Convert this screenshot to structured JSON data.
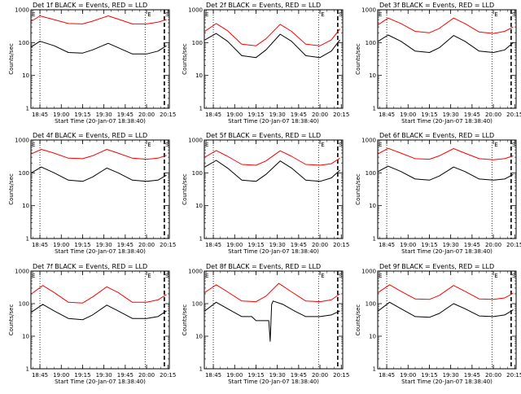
{
  "figure": {
    "background": "#ffffff",
    "series_colors": {
      "events": "#000000",
      "lld": "#ff0000"
    }
  },
  "chart_data": [
    {
      "type": "line",
      "title": "Det 1f BLACK = Events, RED = LLD",
      "xlabel": "Start Time (20-Jan-07 18:38:40)",
      "ylabel": "Counts/sec",
      "yscale": "log",
      "ylim": [
        1,
        1000
      ],
      "xticks": [
        "18:45",
        "19:00",
        "19:15",
        "19:30",
        "19:45",
        "20:00",
        "20:15"
      ],
      "yticks": [
        "1",
        "10",
        "100",
        "1000"
      ],
      "markers": [
        "E",
        "E",
        "S"
      ],
      "series": [
        {
          "name": "BLACK = Events",
          "color": "#000000",
          "x": [
            "18:39",
            "18:45",
            "18:55",
            "19:05",
            "19:15",
            "19:22",
            "19:33",
            "19:40",
            "19:50",
            "20:00",
            "20:08",
            "20:14"
          ],
          "y": [
            75,
            110,
            80,
            50,
            48,
            60,
            95,
            70,
            45,
            45,
            55,
            80
          ]
        },
        {
          "name": "RED = LLD",
          "color": "#ff0000",
          "x": [
            "18:39",
            "18:45",
            "18:55",
            "19:05",
            "19:15",
            "19:22",
            "19:33",
            "19:40",
            "19:50",
            "20:00",
            "20:08",
            "20:14"
          ],
          "y": [
            450,
            650,
            500,
            380,
            370,
            450,
            650,
            520,
            370,
            370,
            420,
            500
          ]
        }
      ]
    },
    {
      "type": "line",
      "title": "Det 2f BLACK = Events, RED = LLD",
      "xlabel": "Start Time (20-Jan-07 18:38:40)",
      "ylabel": "Counts/sec",
      "yscale": "log",
      "ylim": [
        1,
        1000
      ],
      "xticks": [
        "18:45",
        "19:00",
        "19:15",
        "19:30",
        "19:45",
        "20:00",
        "20:15"
      ],
      "yticks": [
        "1",
        "10",
        "100",
        "1000"
      ],
      "markers": [
        "E",
        "E",
        "S"
      ],
      "series": [
        {
          "name": "BLACK = Events",
          "color": "#000000",
          "x": [
            "18:39",
            "18:47",
            "18:55",
            "19:05",
            "19:15",
            "19:22",
            "19:32",
            "19:40",
            "19:50",
            "20:00",
            "20:08",
            "20:14"
          ],
          "y": [
            120,
            190,
            110,
            40,
            35,
            60,
            180,
            110,
            40,
            35,
            55,
            120
          ]
        },
        {
          "name": "RED = LLD",
          "color": "#ff0000",
          "x": [
            "18:39",
            "18:47",
            "18:55",
            "19:05",
            "19:15",
            "19:22",
            "19:32",
            "19:40",
            "19:50",
            "20:00",
            "20:08",
            "20:14"
          ],
          "y": [
            220,
            380,
            230,
            90,
            80,
            130,
            360,
            220,
            90,
            80,
            120,
            260
          ]
        }
      ]
    },
    {
      "type": "line",
      "title": "Det 3f BLACK = Events, RED = LLD",
      "xlabel": "Start Time (20-Jan-07 18:38:40)",
      "ylabel": "Counts/sec",
      "yscale": "log",
      "ylim": [
        1,
        1000
      ],
      "xticks": [
        "18:45",
        "19:00",
        "19:15",
        "19:30",
        "19:45",
        "20:00",
        "20:15"
      ],
      "yticks": [
        "1",
        "10",
        "100",
        "1000"
      ],
      "markers": [
        "E",
        "E",
        "S"
      ],
      "series": [
        {
          "name": "BLACK = Events",
          "color": "#000000",
          "x": [
            "18:39",
            "18:46",
            "18:55",
            "19:05",
            "19:15",
            "19:22",
            "19:32",
            "19:40",
            "19:50",
            "20:00",
            "20:08",
            "20:14"
          ],
          "y": [
            110,
            170,
            110,
            55,
            50,
            70,
            165,
            110,
            55,
            50,
            60,
            100
          ]
        },
        {
          "name": "RED = LLD",
          "color": "#ff0000",
          "x": [
            "18:39",
            "18:46",
            "18:55",
            "19:05",
            "19:15",
            "19:22",
            "19:32",
            "19:40",
            "19:50",
            "20:00",
            "20:08",
            "20:14"
          ],
          "y": [
            350,
            560,
            380,
            220,
            200,
            270,
            560,
            380,
            210,
            190,
            220,
            300
          ]
        }
      ]
    },
    {
      "type": "line",
      "title": "Det 4f BLACK = Events, RED = LLD",
      "xlabel": "Start Time (20-Jan-07 18:38:40)",
      "ylabel": "Counts/sec",
      "yscale": "log",
      "ylim": [
        1,
        1000
      ],
      "xticks": [
        "18:45",
        "19:00",
        "19:15",
        "19:30",
        "19:45",
        "20:00",
        "20:15"
      ],
      "yticks": [
        "1",
        "10",
        "100",
        "1000"
      ],
      "markers": [
        "E",
        "E",
        "S"
      ],
      "series": [
        {
          "name": "BLACK = Events",
          "color": "#000000",
          "x": [
            "18:39",
            "18:46",
            "18:55",
            "19:05",
            "19:15",
            "19:22",
            "19:32",
            "19:40",
            "19:50",
            "20:00",
            "20:08",
            "20:14"
          ],
          "y": [
            100,
            150,
            100,
            60,
            55,
            75,
            140,
            100,
            60,
            55,
            60,
            85
          ]
        },
        {
          "name": "RED = LLD",
          "color": "#ff0000",
          "x": [
            "18:39",
            "18:46",
            "18:55",
            "19:05",
            "19:15",
            "19:22",
            "19:32",
            "19:40",
            "19:50",
            "20:00",
            "20:08",
            "20:14"
          ],
          "y": [
            380,
            520,
            400,
            280,
            270,
            330,
            520,
            400,
            280,
            260,
            280,
            340
          ]
        }
      ]
    },
    {
      "type": "line",
      "title": "Det 5f BLACK = Events, RED = LLD",
      "xlabel": "Start Time (20-Jan-07 18:38:40)",
      "ylabel": "Counts/sec",
      "yscale": "log",
      "ylim": [
        1,
        1000
      ],
      "xticks": [
        "18:45",
        "19:00",
        "19:15",
        "19:30",
        "19:45",
        "20:00",
        "20:15"
      ],
      "yticks": [
        "1",
        "10",
        "100",
        "1000"
      ],
      "markers": [
        "E",
        "E",
        "S"
      ],
      "series": [
        {
          "name": "BLACK = Events",
          "color": "#000000",
          "x": [
            "18:39",
            "18:47",
            "18:55",
            "19:05",
            "19:15",
            "19:22",
            "19:32",
            "19:40",
            "19:50",
            "20:00",
            "20:08",
            "20:14"
          ],
          "y": [
            150,
            240,
            140,
            60,
            55,
            90,
            230,
            140,
            60,
            55,
            70,
            120
          ]
        },
        {
          "name": "RED = LLD",
          "color": "#ff0000",
          "x": [
            "18:39",
            "18:47",
            "18:55",
            "19:05",
            "19:15",
            "19:22",
            "19:32",
            "19:40",
            "19:50",
            "20:00",
            "20:08",
            "20:14"
          ],
          "y": [
            300,
            480,
            320,
            180,
            170,
            230,
            470,
            320,
            180,
            170,
            190,
            280
          ]
        }
      ]
    },
    {
      "type": "line",
      "title": "Det 6f BLACK = Events, RED = LLD",
      "xlabel": "Start Time (20-Jan-07 18:38:40)",
      "ylabel": "Counts/sec",
      "yscale": "log",
      "ylim": [
        1,
        1000
      ],
      "xticks": [
        "18:45",
        "19:00",
        "19:15",
        "19:30",
        "19:45",
        "20:00",
        "20:15"
      ],
      "yticks": [
        "1",
        "10",
        "100",
        "1000"
      ],
      "markers": [
        "E",
        "E",
        "S"
      ],
      "series": [
        {
          "name": "BLACK = Events",
          "color": "#000000",
          "x": [
            "18:39",
            "18:46",
            "18:55",
            "19:05",
            "19:15",
            "19:22",
            "19:32",
            "19:40",
            "19:50",
            "20:00",
            "20:08",
            "20:14"
          ],
          "y": [
            110,
            160,
            110,
            65,
            60,
            80,
            150,
            110,
            65,
            60,
            65,
            90
          ]
        },
        {
          "name": "RED = LLD",
          "color": "#ff0000",
          "x": [
            "18:39",
            "18:46",
            "18:55",
            "19:05",
            "19:15",
            "19:22",
            "19:32",
            "19:40",
            "19:50",
            "20:00",
            "20:08",
            "20:14"
          ],
          "y": [
            380,
            560,
            400,
            270,
            260,
            330,
            550,
            400,
            270,
            250,
            270,
            330
          ]
        }
      ]
    },
    {
      "type": "line",
      "title": "Det 7f BLACK = Events, RED = LLD",
      "xlabel": "Start Time (20-Jan-07 18:38:40)",
      "ylabel": "Counts/sec",
      "yscale": "log",
      "ylim": [
        1,
        1000
      ],
      "xticks": [
        "18:45",
        "19:00",
        "19:15",
        "19:30",
        "19:45",
        "20:00",
        "20:15"
      ],
      "yticks": [
        "1",
        "10",
        "100",
        "1000"
      ],
      "markers": [
        "E",
        "E",
        "S"
      ],
      "series": [
        {
          "name": "BLACK = Events",
          "color": "#000000",
          "x": [
            "18:39",
            "18:47",
            "18:55",
            "19:05",
            "19:15",
            "19:22",
            "19:32",
            "19:40",
            "19:50",
            "20:00",
            "20:08",
            "20:14"
          ],
          "y": [
            55,
            95,
            60,
            35,
            32,
            45,
            90,
            60,
            35,
            35,
            40,
            60
          ]
        },
        {
          "name": "RED = LLD",
          "color": "#ff0000",
          "x": [
            "18:39",
            "18:47",
            "18:55",
            "19:05",
            "19:15",
            "19:22",
            "19:32",
            "19:40",
            "19:50",
            "20:00",
            "20:08",
            "20:14"
          ],
          "y": [
            200,
            360,
            220,
            110,
            105,
            160,
            330,
            220,
            110,
            110,
            130,
            190
          ]
        }
      ]
    },
    {
      "type": "line",
      "title": "Det 8f BLACK = Events, RED = LLD",
      "xlabel": "Start Time (20-Jan-07 18:38:40)",
      "ylabel": "Counts/sec",
      "yscale": "log",
      "ylim": [
        1,
        1000
      ],
      "xticks": [
        "18:45",
        "19:00",
        "19:15",
        "19:30",
        "19:45",
        "20:00",
        "20:15"
      ],
      "yticks": [
        "1",
        "10",
        "100",
        "1000"
      ],
      "markers": [
        "E",
        "E",
        "S"
      ],
      "series": [
        {
          "name": "BLACK = Events",
          "color": "#000000",
          "x": [
            "18:39",
            "18:47",
            "18:55",
            "19:05",
            "19:12",
            "19:15",
            "19:24",
            "19:25",
            "19:26",
            "19:27",
            "19:34",
            "19:42",
            "19:50",
            "20:00",
            "20:08",
            "20:14"
          ],
          "y": [
            60,
            110,
            70,
            40,
            40,
            30,
            30,
            7,
            95,
            120,
            95,
            60,
            40,
            40,
            45,
            60
          ]
        },
        {
          "name": "RED = LLD",
          "color": "#ff0000",
          "x": [
            "18:39",
            "18:47",
            "18:55",
            "19:05",
            "19:15",
            "19:22",
            "19:31",
            "19:40",
            "19:50",
            "20:00",
            "20:08",
            "20:14"
          ],
          "y": [
            220,
            380,
            230,
            120,
            115,
            170,
            420,
            230,
            120,
            115,
            130,
            200
          ]
        }
      ]
    },
    {
      "type": "line",
      "title": "Det 9f BLACK = Events, RED = LLD",
      "xlabel": "Start Time (20-Jan-07 18:38:40)",
      "ylabel": "Counts/sec",
      "yscale": "log",
      "ylim": [
        1,
        1000
      ],
      "xticks": [
        "18:45",
        "19:00",
        "19:15",
        "19:30",
        "19:45",
        "20:00",
        "20:15"
      ],
      "yticks": [
        "1",
        "10",
        "100",
        "1000"
      ],
      "markers": [
        "E",
        "E",
        "S"
      ],
      "series": [
        {
          "name": "BLACK = Events",
          "color": "#000000",
          "x": [
            "18:39",
            "18:47",
            "18:55",
            "19:05",
            "19:15",
            "19:22",
            "19:32",
            "19:40",
            "19:50",
            "20:00",
            "20:08",
            "20:14"
          ],
          "y": [
            60,
            110,
            70,
            40,
            38,
            50,
            100,
            70,
            42,
            40,
            45,
            65
          ]
        },
        {
          "name": "RED = LLD",
          "color": "#ff0000",
          "x": [
            "18:39",
            "18:47",
            "18:55",
            "19:05",
            "19:15",
            "19:22",
            "19:32",
            "19:40",
            "19:50",
            "20:00",
            "20:08",
            "20:14"
          ],
          "y": [
            220,
            380,
            240,
            140,
            135,
            180,
            360,
            240,
            140,
            135,
            150,
            210
          ]
        }
      ]
    }
  ]
}
